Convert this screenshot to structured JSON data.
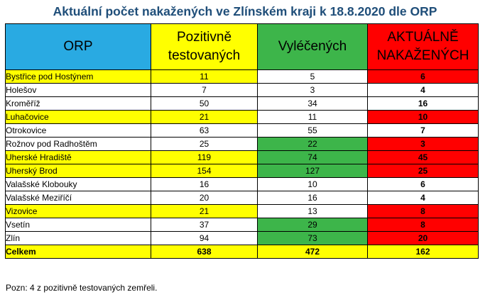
{
  "title": "Aktuální počet nakažených ve Zlínském kraji k 18.8.2020 dle ORP",
  "colors": {
    "title": "#1f4e79",
    "yellow": "#ffff00",
    "green": "#3db54a",
    "red": "#ff0000",
    "blue": "#29aae2",
    "white": "#ffffff"
  },
  "headers": {
    "orp": "ORP",
    "pozitivne_line1": "Pozitivně",
    "pozitivne_line2": "testovaných",
    "vylecenych": "Vyléčených",
    "aktualne_line1": "AKTUÁLNĚ",
    "aktualne_line2": "NAKAŽENÝCH"
  },
  "rows": [
    {
      "orp": "Bystřice pod Hostýnem",
      "pozitivne": "11",
      "vylecenych": "5",
      "aktualne": "6",
      "bg": [
        "yellow",
        "yellow",
        "white",
        "red"
      ]
    },
    {
      "orp": "Holešov",
      "pozitivne": "7",
      "vylecenych": "3",
      "aktualne": "4",
      "bg": [
        "white",
        "white",
        "white",
        "white"
      ]
    },
    {
      "orp": "Kroměříž",
      "pozitivne": "50",
      "vylecenych": "34",
      "aktualne": "16",
      "bg": [
        "white",
        "white",
        "white",
        "white"
      ]
    },
    {
      "orp": "Luhačovice",
      "pozitivne": "21",
      "vylecenych": "11",
      "aktualne": "10",
      "bg": [
        "yellow",
        "yellow",
        "white",
        "red"
      ]
    },
    {
      "orp": "Otrokovice",
      "pozitivne": "63",
      "vylecenych": "55",
      "aktualne": "7",
      "bg": [
        "white",
        "white",
        "white",
        "white"
      ]
    },
    {
      "orp": "Rožnov pod Radhoštěm",
      "pozitivne": "25",
      "vylecenych": "22",
      "aktualne": "3",
      "bg": [
        "white",
        "white",
        "green",
        "red"
      ]
    },
    {
      "orp": "Uherské Hradiště",
      "pozitivne": "119",
      "vylecenych": "74",
      "aktualne": "45",
      "bg": [
        "yellow",
        "yellow",
        "green",
        "red"
      ]
    },
    {
      "orp": "Uherský Brod",
      "pozitivne": "154",
      "vylecenych": "127",
      "aktualne": "25",
      "bg": [
        "yellow",
        "yellow",
        "green",
        "red"
      ]
    },
    {
      "orp": "Valašské Klobouky",
      "pozitivne": "16",
      "vylecenych": "10",
      "aktualne": "6",
      "bg": [
        "white",
        "white",
        "white",
        "white"
      ]
    },
    {
      "orp": "Valašské Meziříčí",
      "pozitivne": "20",
      "vylecenych": "16",
      "aktualne": "4",
      "bg": [
        "white",
        "white",
        "white",
        "white"
      ]
    },
    {
      "orp": "Vizovice",
      "pozitivne": "21",
      "vylecenych": "13",
      "aktualne": "8",
      "bg": [
        "yellow",
        "yellow",
        "white",
        "red"
      ]
    },
    {
      "orp": "Vsetín",
      "pozitivne": "37",
      "vylecenych": "29",
      "aktualne": "8",
      "bg": [
        "white",
        "white",
        "green",
        "red"
      ]
    },
    {
      "orp": "Zlín",
      "pozitivne": "94",
      "vylecenych": "73",
      "aktualne": "20",
      "bg": [
        "white",
        "white",
        "green",
        "red"
      ]
    }
  ],
  "total": {
    "orp": "Celkem",
    "pozitivne": "638",
    "vylecenych": "472",
    "aktualne": "162",
    "bg": "yellow"
  },
  "note": "Pozn: 4 z pozitivně testovaných zemřeli."
}
